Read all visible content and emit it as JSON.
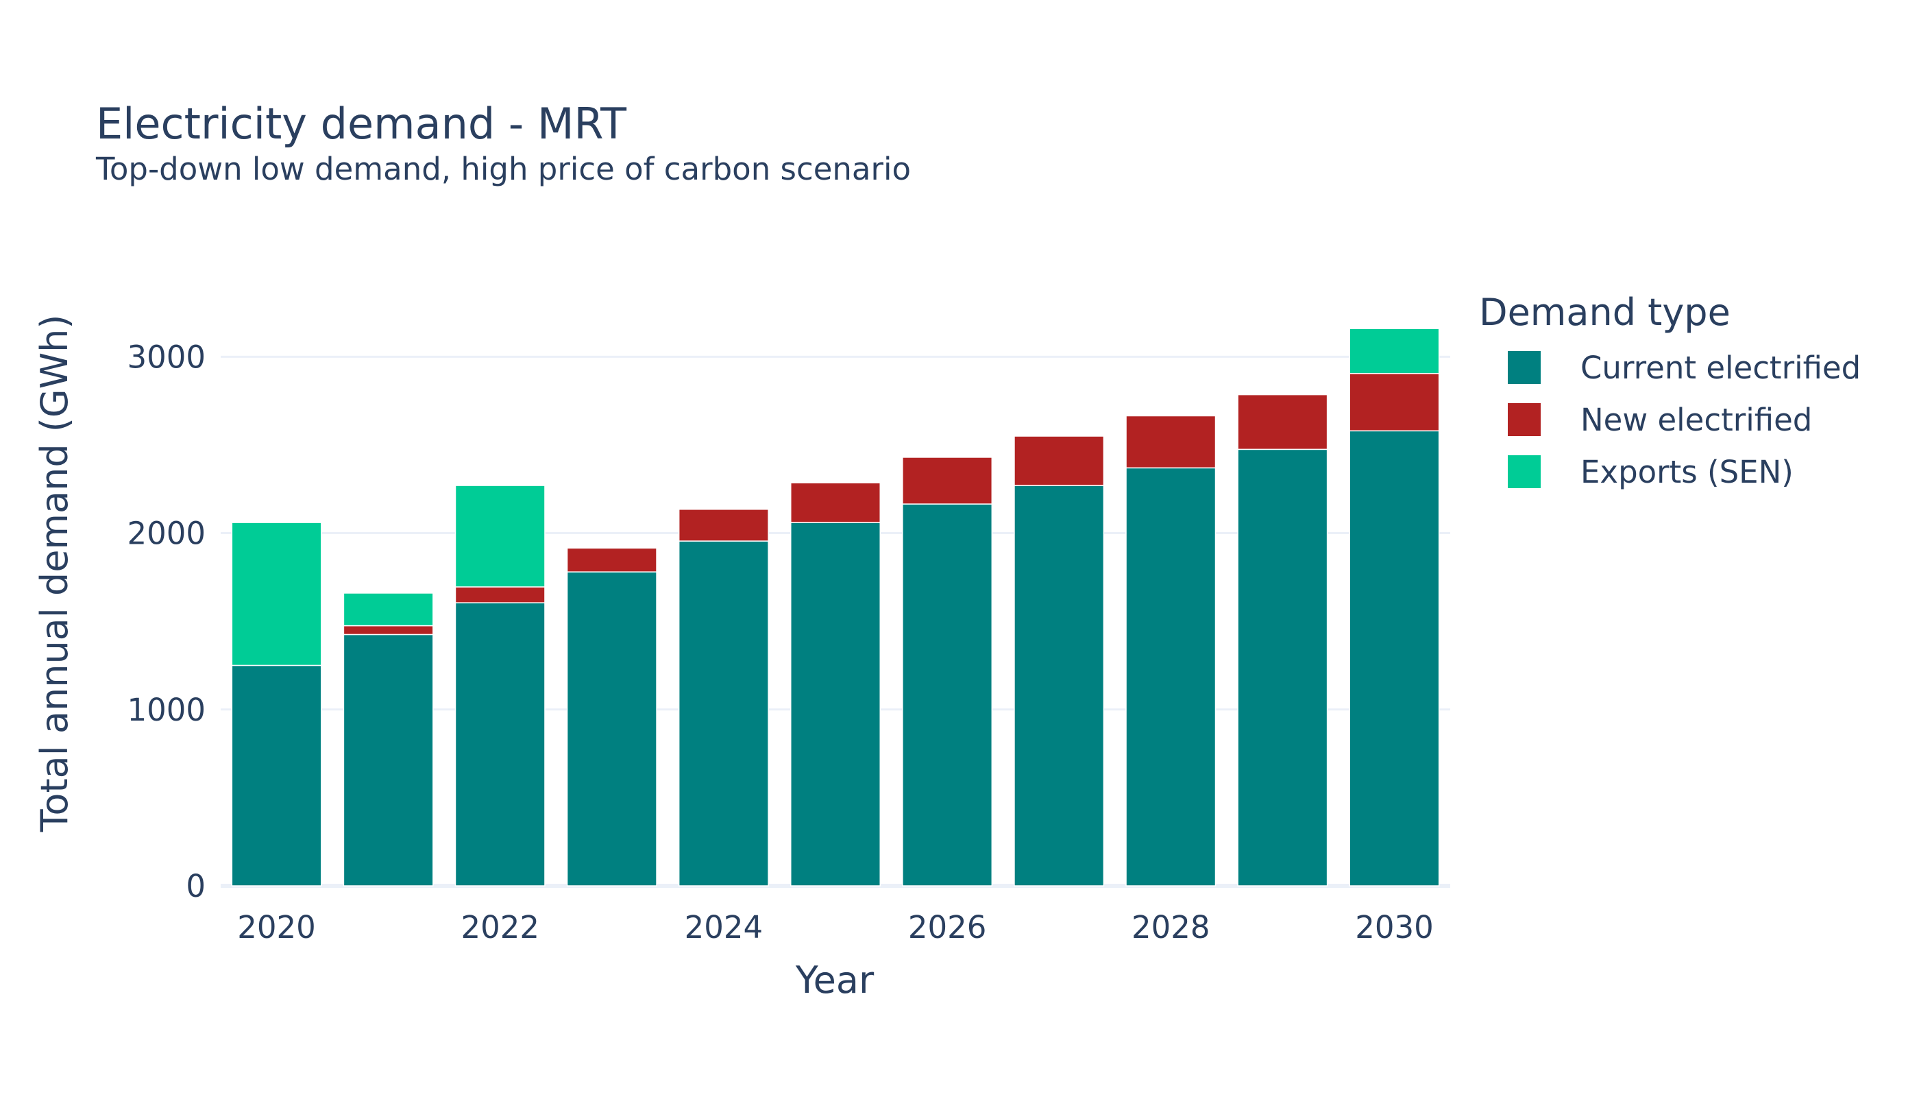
{
  "chart_data": {
    "type": "bar",
    "stacked": true,
    "title": "Electricity demand - MRT",
    "subtitle": "Top-down low demand, high price of carbon scenario",
    "xlabel": "Year",
    "ylabel": "Total annual demand (GWh)",
    "x": [
      2020,
      2021,
      2022,
      2023,
      2024,
      2025,
      2026,
      2027,
      2028,
      2029,
      2030
    ],
    "x_ticks": [
      "2020",
      "2022",
      "2024",
      "2026",
      "2028",
      "2030"
    ],
    "y_ticks": [
      "0",
      "1000",
      "2000",
      "3000"
    ],
    "ylim": [
      0,
      3320
    ],
    "grid": true,
    "legend": {
      "title": "Demand type",
      "position": "right"
    },
    "series": [
      {
        "name": "Current electrified",
        "color": "#008080",
        "values": [
          1250,
          1425,
          1605,
          1780,
          1955,
          2060,
          2165,
          2270,
          2370,
          2475,
          2580
        ]
      },
      {
        "name": "New electrified",
        "color": "#b22222",
        "values": [
          0,
          50,
          90,
          135,
          180,
          225,
          265,
          280,
          295,
          310,
          325
        ]
      },
      {
        "name": "Exports (SEN)",
        "color": "#00cc96",
        "values": [
          810,
          185,
          575,
          0,
          0,
          0,
          0,
          0,
          0,
          0,
          255
        ]
      }
    ]
  }
}
